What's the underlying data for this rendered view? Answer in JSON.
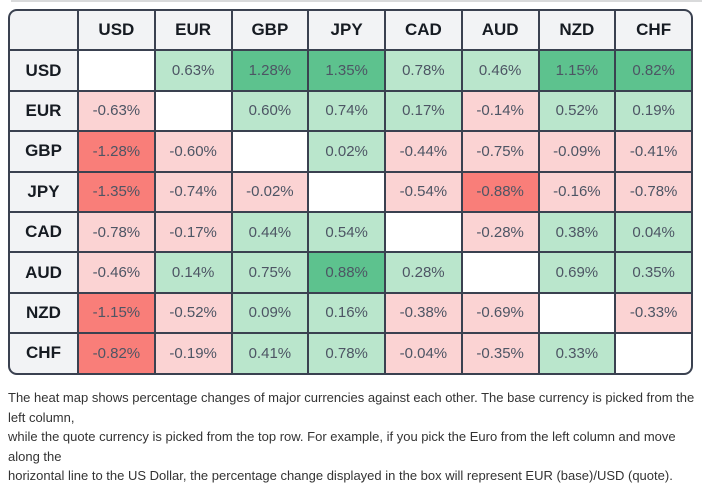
{
  "colors": {
    "border": "#3a4150",
    "divider": "#d9dadb",
    "header_bg": "#f2f3f5",
    "header_text": "#161b22",
    "cell_text": "#4d5564",
    "positive_light": "#bae6cc",
    "positive_strong": "#5dc28e",
    "negative_light": "#fbd3d3",
    "negative_strong": "#f97e79",
    "blank": "#ffffff",
    "footnote_text": "#333333"
  },
  "chart_data": {
    "type": "heatmap",
    "columns": [
      "USD",
      "EUR",
      "GBP",
      "JPY",
      "CAD",
      "AUD",
      "NZD",
      "CHF"
    ],
    "rows": [
      "USD",
      "EUR",
      "GBP",
      "JPY",
      "CAD",
      "AUD",
      "NZD",
      "CHF"
    ],
    "unit": "%",
    "value_decimals": 2,
    "strong_threshold": 0.8,
    "values": [
      [
        null,
        0.63,
        1.28,
        1.35,
        0.78,
        0.46,
        1.15,
        0.82
      ],
      [
        -0.63,
        null,
        0.6,
        0.74,
        0.17,
        -0.14,
        0.52,
        0.19
      ],
      [
        -1.28,
        -0.6,
        null,
        0.02,
        -0.44,
        -0.75,
        -0.09,
        -0.41
      ],
      [
        -1.35,
        -0.74,
        -0.02,
        null,
        -0.54,
        -0.88,
        -0.16,
        -0.78
      ],
      [
        -0.78,
        -0.17,
        0.44,
        0.54,
        null,
        -0.28,
        0.38,
        0.04
      ],
      [
        -0.46,
        0.14,
        0.75,
        0.88,
        0.28,
        null,
        0.69,
        0.35
      ],
      [
        -1.15,
        -0.52,
        0.09,
        0.16,
        -0.38,
        -0.69,
        null,
        -0.33
      ],
      [
        -0.82,
        -0.19,
        0.41,
        0.78,
        -0.04,
        -0.35,
        0.33,
        null
      ]
    ]
  },
  "footnote": {
    "line1": "The heat map shows percentage changes of major currencies against each other. The base currency is picked from the left column,",
    "line2": "while the quote currency is picked from the top row. For example, if you pick the Euro from the left column and move along the",
    "line3": "horizontal line to the US Dollar, the percentage change displayed in the box will represent EUR (base)/USD (quote)."
  }
}
